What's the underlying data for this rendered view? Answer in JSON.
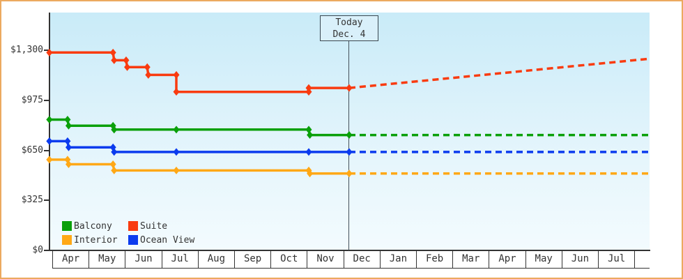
{
  "chart_data": {
    "type": "line",
    "title": "",
    "ylim": [
      0,
      1300
    ],
    "grid": false,
    "legend_position": "bottom-left",
    "projection_style": "dashed",
    "y_axis": {
      "ticks": [
        {
          "label": "$0",
          "value": 0
        },
        {
          "label": "$325",
          "value": 325
        },
        {
          "label": "$650",
          "value": 650
        },
        {
          "label": "$975",
          "value": 975
        },
        {
          "label": "$1,300",
          "value": 1300
        }
      ]
    },
    "x_axis": {
      "month_labels": [
        "Apr",
        "May",
        "Jun",
        "Jul",
        "Aug",
        "Sep",
        "Oct",
        "Nov",
        "Dec",
        "Jan",
        "Feb",
        "Mar",
        "Apr",
        "May",
        "Jun",
        "Jul"
      ]
    },
    "today": {
      "line1": "Today",
      "line2": "Dec. 4",
      "month_offset": 8.16
    },
    "series": [
      {
        "name": "Balcony",
        "color": "#0aa00a",
        "points": [
          [
            -0.08,
            850
          ],
          [
            0.42,
            850
          ],
          [
            0.45,
            810
          ],
          [
            1.67,
            810
          ],
          [
            1.7,
            785
          ],
          [
            3.41,
            785
          ],
          [
            7.05,
            785
          ],
          [
            7.08,
            750
          ],
          [
            8.16,
            750
          ]
        ],
        "projection": [
          [
            8.16,
            750
          ],
          [
            16.42,
            750
          ]
        ]
      },
      {
        "name": "Suite",
        "color": "#f93b10",
        "points": [
          [
            -0.08,
            1285
          ],
          [
            1.67,
            1285
          ],
          [
            1.7,
            1235
          ],
          [
            2.03,
            1235
          ],
          [
            2.06,
            1190
          ],
          [
            2.61,
            1190
          ],
          [
            2.64,
            1140
          ],
          [
            3.41,
            1140
          ],
          [
            3.41,
            1030
          ],
          [
            7.05,
            1030
          ],
          [
            7.05,
            1055
          ],
          [
            8.16,
            1055
          ]
        ],
        "projection": [
          [
            8.16,
            1055
          ],
          [
            16.42,
            1245
          ]
        ]
      },
      {
        "name": "Interior",
        "color": "#ffa816",
        "points": [
          [
            -0.08,
            590
          ],
          [
            0.42,
            590
          ],
          [
            0.45,
            560
          ],
          [
            1.67,
            560
          ],
          [
            1.7,
            520
          ],
          [
            3.41,
            520
          ],
          [
            7.05,
            520
          ],
          [
            7.08,
            500
          ],
          [
            8.16,
            500
          ]
        ],
        "projection": [
          [
            8.16,
            500
          ],
          [
            16.42,
            500
          ]
        ]
      },
      {
        "name": "Ocean View",
        "color": "#0b3bee",
        "points": [
          [
            -0.08,
            710
          ],
          [
            0.42,
            710
          ],
          [
            0.45,
            670
          ],
          [
            1.67,
            670
          ],
          [
            1.7,
            640
          ],
          [
            3.41,
            640
          ],
          [
            7.05,
            640
          ],
          [
            8.16,
            640
          ]
        ],
        "projection": [
          [
            8.16,
            640
          ],
          [
            16.42,
            640
          ]
        ]
      }
    ]
  }
}
